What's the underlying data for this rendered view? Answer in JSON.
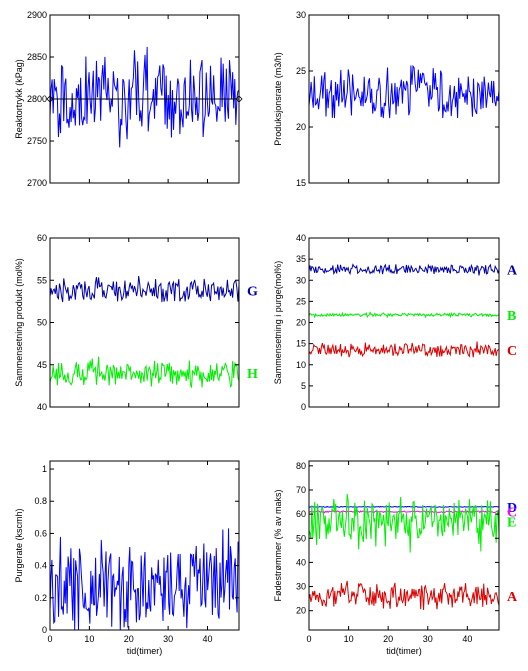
{
  "chart_data": [
    {
      "id": "p1",
      "type": "line",
      "xlim": [
        0,
        48
      ],
      "ylim": [
        2700,
        2900
      ],
      "yticks": [
        2700,
        2750,
        2800,
        2850,
        2900
      ],
      "yticklabels": [
        "2700",
        "2750",
        "2800",
        "2850",
        "2900"
      ],
      "xticks": [
        0,
        10,
        20,
        30,
        40
      ],
      "show_xticklabels": false,
      "ylabel": "Reaktortrykk (kPag)",
      "xlabel": "",
      "reference_line": {
        "value": 2800,
        "color": "#000000"
      },
      "series": [
        {
          "color": "#0000ff",
          "mean": 2800,
          "amp": 60,
          "min": 2705,
          "max": 2862,
          "n": 180,
          "seed": 11,
          "label": ""
        }
      ]
    },
    {
      "id": "p2",
      "type": "line",
      "xlim": [
        0,
        48
      ],
      "ylim": [
        15,
        30
      ],
      "yticks": [
        15,
        20,
        25,
        30
      ],
      "yticklabels": [
        "15",
        "20",
        "25",
        "30"
      ],
      "xticks": [
        0,
        10,
        20,
        30,
        40
      ],
      "show_xticklabels": false,
      "ylabel": "Produksjonsrate (m3/h)",
      "xlabel": "",
      "series": [
        {
          "color": "#0000ff",
          "mean": 22.9,
          "amp": 2.6,
          "min": 20.8,
          "max": 26.0,
          "n": 180,
          "seed": 23,
          "label": ""
        }
      ]
    },
    {
      "id": "p3",
      "type": "line",
      "xlim": [
        0,
        48
      ],
      "ylim": [
        40,
        60
      ],
      "yticks": [
        40,
        45,
        50,
        55,
        60
      ],
      "yticklabels": [
        "40",
        "45",
        "50",
        "55",
        "60"
      ],
      "xticks": [
        0,
        10,
        20,
        30,
        40
      ],
      "show_xticklabels": false,
      "ylabel": "Sammensetning produkt (mol%)",
      "xlabel": "",
      "series": [
        {
          "color": "#0000aa",
          "mean": 53.8,
          "amp": 1.6,
          "min": 52.0,
          "max": 55.5,
          "n": 180,
          "seed": 37,
          "label": "G"
        },
        {
          "color": "#00ee00",
          "mean": 44.0,
          "amp": 1.8,
          "min": 42.3,
          "max": 47.0,
          "n": 180,
          "seed": 41,
          "label": "H"
        }
      ]
    },
    {
      "id": "p4",
      "type": "line",
      "xlim": [
        0,
        48
      ],
      "ylim": [
        0,
        40
      ],
      "yticks": [
        0,
        5,
        10,
        15,
        20,
        25,
        30,
        35,
        40
      ],
      "yticklabels": [
        "0",
        "5",
        "10",
        "15",
        "20",
        "25",
        "30",
        "35",
        "40"
      ],
      "xticks": [
        0,
        10,
        20,
        30,
        40
      ],
      "show_xticklabels": false,
      "ylabel": "Sammensetning i purge(mol%)",
      "xlabel": "",
      "series": [
        {
          "color": "#0000aa",
          "mean": 32.6,
          "amp": 1.4,
          "min": 31.0,
          "max": 34.5,
          "n": 200,
          "seed": 53,
          "label": "A"
        },
        {
          "color": "#00ee00",
          "mean": 21.8,
          "amp": 0.5,
          "min": 21.0,
          "max": 22.8,
          "n": 200,
          "seed": 59,
          "label": "B"
        },
        {
          "color": "#dd0000",
          "mean": 13.5,
          "amp": 1.8,
          "min": 11.0,
          "max": 16.0,
          "n": 200,
          "seed": 61,
          "label": "C"
        }
      ]
    },
    {
      "id": "p5",
      "type": "line",
      "xlim": [
        0,
        48
      ],
      "ylim": [
        0,
        1.05
      ],
      "yticks": [
        0,
        0.2,
        0.4,
        0.6,
        0.8,
        1
      ],
      "yticklabels": [
        "0",
        "0.2",
        "0.4",
        "0.6",
        "0.8",
        "1"
      ],
      "xticks": [
        0,
        10,
        20,
        30,
        40
      ],
      "xticklabels": [
        "0",
        "10",
        "20",
        "30",
        "40"
      ],
      "show_xticklabels": true,
      "ylabel": "Purgerate (kscmh)",
      "xlabel": "tid(timer)",
      "series": [
        {
          "color": "#0000ff",
          "mean": 0.28,
          "amp": 0.32,
          "min": 0.0,
          "max": 0.71,
          "n": 200,
          "seed": 71,
          "label": ""
        }
      ]
    },
    {
      "id": "p6",
      "type": "line",
      "xlim": [
        0,
        48
      ],
      "ylim": [
        12,
        82
      ],
      "yticks": [
        20,
        30,
        40,
        50,
        60,
        70,
        80
      ],
      "yticklabels": [
        "20",
        "30",
        "40",
        "50",
        "60",
        "70",
        "80"
      ],
      "xticks": [
        0,
        10,
        20,
        30,
        40
      ],
      "xticklabels": [
        "0",
        "10",
        "20",
        "30",
        "40"
      ],
      "show_xticklabels": true,
      "ylabel": "Fødestrømmer (% av  maks)",
      "xlabel": "tid(timer)",
      "series": [
        {
          "color": "#0000ff",
          "mean": 63.0,
          "amp": 0.2,
          "min": 62.7,
          "max": 63.3,
          "n": 200,
          "seed": 79,
          "label": "D"
        },
        {
          "color": "#ff00ff",
          "mean": 61.0,
          "amp": 0.4,
          "min": 60.3,
          "max": 61.6,
          "n": 200,
          "seed": 83,
          "label": "C"
        },
        {
          "color": "#00ee00",
          "mean": 57.0,
          "amp": 11,
          "min": 38.0,
          "max": 77.0,
          "n": 200,
          "seed": 89,
          "label": "E"
        },
        {
          "color": "#dd0000",
          "mean": 26.0,
          "amp": 5.5,
          "min": 14.0,
          "max": 38.0,
          "n": 200,
          "seed": 97,
          "label": "A"
        }
      ]
    }
  ]
}
